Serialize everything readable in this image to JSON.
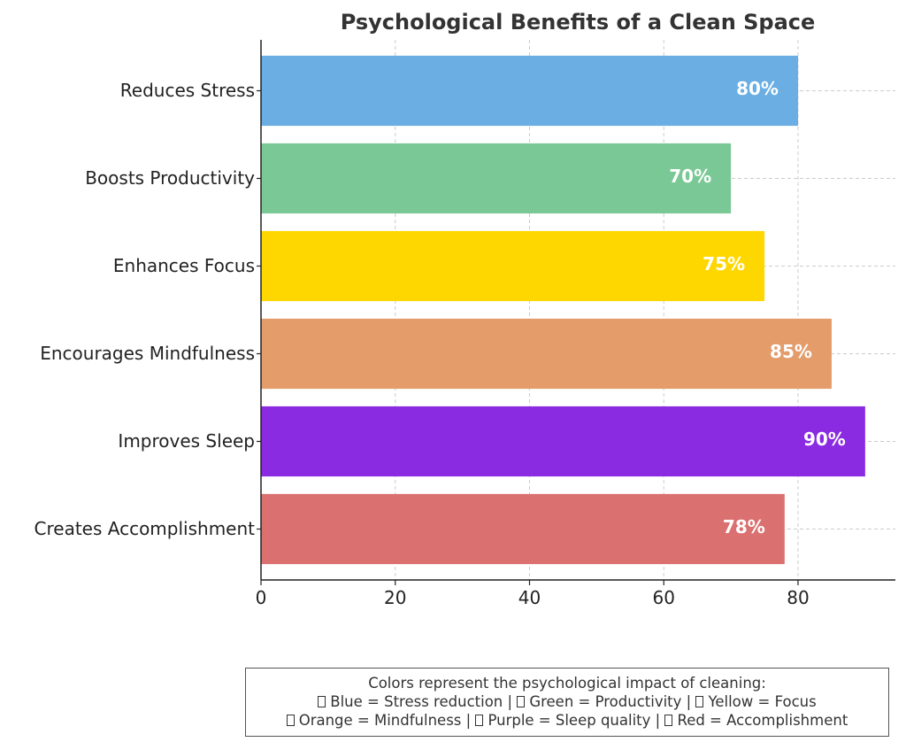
{
  "chart_data": {
    "type": "bar",
    "orientation": "horizontal",
    "title": "Psychological Benefits of a Clean Space",
    "xlabel": "",
    "ylabel": "",
    "xlim": [
      0,
      94.5
    ],
    "xticks": [
      0,
      20,
      40,
      60,
      80
    ],
    "grid": true,
    "categories": [
      "Reduces Stress",
      "Boosts Productivity",
      "Enhances Focus",
      "Encourages Mindfulness",
      "Improves Sleep",
      "Creates Accomplishment"
    ],
    "values": [
      80,
      70,
      75,
      85,
      90,
      78
    ],
    "data_labels": [
      "80%",
      "70%",
      "75%",
      "85%",
      "90%",
      "78%"
    ],
    "colors": [
      "#6aaee3",
      "#7ac895",
      "#ffd700",
      "#e39c6a",
      "#8a2be2",
      "#db7070"
    ]
  },
  "legend_note": {
    "heading": "Colors represent the psychological impact of cleaning:",
    "line1": {
      "a": "Blue = Stress reduction |",
      "b": "Green = Productivity |",
      "c": "Yellow = Focus"
    },
    "line2": {
      "a": "Orange = Mindfulness |",
      "b": "Purple = Sleep quality |",
      "c": "Red = Accomplishment"
    }
  }
}
